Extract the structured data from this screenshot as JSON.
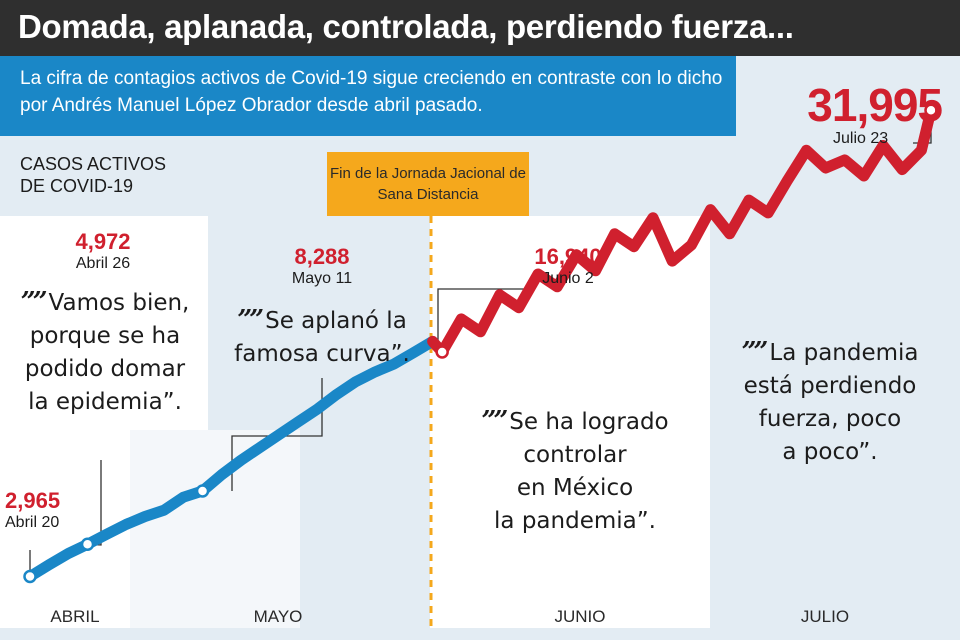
{
  "title": "Domada, aplanada, controlada, perdiendo fuerza...",
  "subtitle": "La cifra de contagios activos de Covid-19 sigue creciendo en contraste con lo dicho por Andrés Manuel López Obrador desde abril pasado.",
  "y_label_line1": "CASOS ACTIVOS",
  "y_label_line2": "DE COVID-19",
  "event_callout": "Fin de la Jornada Jacional de Sana Distancia",
  "colors": {
    "before": "#1a87c7",
    "after": "#d0202e",
    "dashed": "#f5a81c",
    "title_bg": "#2f2f2f"
  },
  "chart_data": {
    "type": "line",
    "title": "Domada, aplanada, controlada, perdiendo fuerza...",
    "ylabel": "CASOS ACTIVOS DE COVID-19",
    "x_range": [
      "Abril 20",
      "Julio 23"
    ],
    "ylim": [
      2000,
      34000
    ],
    "grid": false,
    "months": [
      "ABRIL",
      "MAYO",
      "JUNIO",
      "JULIO"
    ],
    "annotations": [
      {
        "value": "2,965",
        "date": "Abril 20"
      },
      {
        "value": "4,972",
        "date": "Abril 26"
      },
      {
        "value": "8,288",
        "date": "Mayo 11"
      },
      {
        "value": "16,940",
        "date": "Junio 2"
      },
      {
        "value": "31,995",
        "date": "Julio 23"
      }
    ],
    "series": [
      {
        "segment": "before",
        "x": [
          0,
          2,
          4,
          6,
          8,
          10,
          12,
          14,
          16,
          18,
          20,
          22,
          24,
          26,
          28,
          30,
          32,
          34,
          36,
          38,
          40,
          42
        ],
        "values": [
          2965,
          3700,
          4400,
          4972,
          5600,
          6200,
          6700,
          7100,
          7900,
          8288,
          9300,
          10200,
          11000,
          11800,
          12600,
          13400,
          14300,
          15100,
          15700,
          16200,
          16900,
          17600
        ]
      },
      {
        "segment": "after",
        "x": [
          42,
          43,
          45,
          47,
          49,
          51,
          53,
          55,
          57,
          59,
          61,
          63,
          65,
          67,
          69,
          71,
          73,
          75,
          77,
          79,
          81,
          83,
          85,
          87,
          89,
          91,
          93,
          94
        ],
        "values": [
          17600,
          16940,
          19000,
          18200,
          20500,
          19700,
          21800,
          21000,
          23000,
          22000,
          24300,
          23500,
          25300,
          22600,
          23600,
          25800,
          24300,
          26400,
          25600,
          27600,
          29500,
          28400,
          28900,
          27900,
          29800,
          28300,
          29500,
          31995
        ]
      }
    ]
  },
  "quotes": {
    "q1": [
      "Vamos bien,",
      "porque se ha",
      "podido domar",
      "la epidemia”."
    ],
    "q2": [
      "Se aplanó la",
      "famosa curva”."
    ],
    "q3": [
      "Se ha logrado",
      "controlar",
      "en México",
      "la pandemia”."
    ],
    "q4": [
      "La pandemia",
      "está perdiendo",
      "fuerza, poco",
      "a poco”."
    ]
  },
  "quote_mark": "””"
}
